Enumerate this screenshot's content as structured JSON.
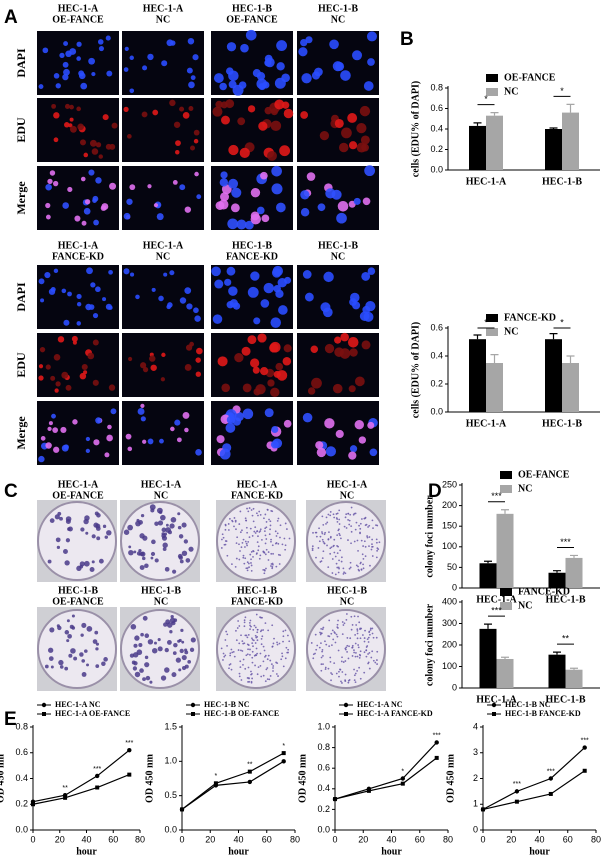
{
  "panel_labels": [
    "A",
    "B",
    "C",
    "D",
    "E"
  ],
  "edu_top": {
    "columns": [
      [
        "HEC-1-A",
        "OE-FANCE"
      ],
      [
        "HEC-1-A",
        "NC"
      ],
      [
        "HEC-1-B",
        "OE-FANCE"
      ],
      [
        "HEC-1-B",
        "NC"
      ]
    ],
    "rows": [
      "DAPI",
      "EDU",
      "Merge"
    ]
  },
  "edu_bottom": {
    "columns": [
      [
        "HEC-1-A",
        "FANCE-KD"
      ],
      [
        "HEC-1-A",
        "NC"
      ],
      [
        "HEC-1-B",
        "FANCE-KD"
      ],
      [
        "HEC-1-B",
        "NC"
      ]
    ],
    "rows": [
      "DAPI",
      "EDU",
      "Merge"
    ]
  },
  "colony": {
    "top": [
      [
        "HEC-1-A",
        "OE-FANCE"
      ],
      [
        "HEC-1-A",
        "NC"
      ],
      [
        "HEC-1-A",
        "FANCE-KD"
      ],
      [
        "HEC-1-A",
        "NC"
      ]
    ],
    "bottom": [
      [
        "HEC-1-B",
        "OE-FANCE"
      ],
      [
        "HEC-1-B",
        "NC"
      ],
      [
        "HEC-1-B",
        "FANCE-KD"
      ],
      [
        "HEC-1-B",
        "NC"
      ]
    ]
  },
  "chart_data": [
    {
      "type": "bar",
      "y_label": "cells (EDU% of DAPI)",
      "categories": [
        "HEC-1-A",
        "HEC-1-B"
      ],
      "series": [
        {
          "name": "OE-FANCE",
          "color": "#000000",
          "values": [
            0.43,
            0.4
          ],
          "errors": [
            0.03,
            0.01
          ]
        },
        {
          "name": "NC",
          "color": "#a6a6a6",
          "values": [
            0.53,
            0.56
          ],
          "errors": [
            0.03,
            0.08
          ]
        }
      ],
      "ylim": [
        0,
        0.8
      ],
      "yticks": [
        {
          "value": 0,
          "label": "0.0"
        },
        0.2,
        0.4,
        0.6,
        0.8
      ],
      "significance": [
        "*",
        "*"
      ]
    },
    {
      "type": "bar",
      "y_label": "cells (EDU% of DAPI)",
      "categories": [
        "HEC-1-A",
        "HEC-1-B"
      ],
      "series": [
        {
          "name": "FANCE-KD",
          "color": "#000000",
          "values": [
            0.52,
            0.52
          ],
          "errors": [
            0.03,
            0.04
          ]
        },
        {
          "name": "NC",
          "color": "#a6a6a6",
          "values": [
            0.35,
            0.35
          ],
          "errors": [
            0.06,
            0.05
          ]
        }
      ],
      "ylim": [
        0,
        0.6
      ],
      "yticks": [
        {
          "value": 0,
          "label": "0.0"
        },
        0.2,
        0.4,
        0.6
      ],
      "significance": [
        "*",
        "*"
      ]
    },
    {
      "type": "bar",
      "y_label": "colony foci number",
      "categories": [
        "HEC-1-A",
        "HEC-1-B"
      ],
      "series": [
        {
          "name": "OE-FANCE",
          "color": "#000000",
          "values": [
            60,
            37
          ],
          "errors": [
            5,
            5
          ]
        },
        {
          "name": "NC",
          "color": "#a6a6a6",
          "values": [
            180,
            73
          ],
          "errors": [
            10,
            6
          ]
        }
      ],
      "ylim": [
        0,
        250
      ],
      "yticks": [
        0,
        50,
        100,
        150,
        200,
        250
      ],
      "significance": [
        "***",
        "***"
      ]
    },
    {
      "type": "bar",
      "y_label": "colony foci number",
      "categories": [
        "HEC-1-A",
        "HEC-1-B"
      ],
      "series": [
        {
          "name": "FANCE-KD",
          "color": "#000000",
          "values": [
            275,
            155
          ],
          "errors": [
            22,
            12
          ]
        },
        {
          "name": "NC",
          "color": "#a6a6a6",
          "values": [
            135,
            85
          ],
          "errors": [
            8,
            7
          ]
        }
      ],
      "ylim": [
        0,
        400
      ],
      "yticks": [
        0,
        100,
        200,
        300,
        400
      ],
      "significance": [
        "***",
        "**"
      ]
    },
    {
      "type": "line",
      "x_label": "hour",
      "y_label": "OD 450 nm",
      "x": [
        0,
        24,
        48,
        72
      ],
      "series": [
        {
          "name": "HEC-1-A NC",
          "color": "#000000",
          "values": [
            0.22,
            0.27,
            0.42,
            0.62
          ]
        },
        {
          "name": "HEC-1-A OE-FANCE",
          "color": "#000000",
          "values": [
            0.2,
            0.25,
            0.33,
            0.43
          ]
        }
      ],
      "xlim": [
        0,
        80
      ],
      "xticks": [
        0,
        20,
        40,
        60,
        80
      ],
      "ylim": [
        0,
        0.8
      ],
      "yticks": [
        {
          "value": 0,
          "label": "0.0"
        },
        0.2,
        0.4,
        0.6,
        0.8
      ],
      "significance": [
        null,
        "**",
        "***",
        "***"
      ]
    },
    {
      "type": "line",
      "x_label": "hour",
      "y_label": "OD 450 nm",
      "x": [
        0,
        24,
        48,
        72
      ],
      "series": [
        {
          "name": "HEC-1-B NC",
          "color": "#000000",
          "values": [
            0.3,
            0.65,
            0.7,
            1.0
          ]
        },
        {
          "name": "HEC-1-B OE-FANCE",
          "color": "#000000",
          "values": [
            0.3,
            0.68,
            0.85,
            1.12
          ]
        }
      ],
      "xlim": [
        0,
        80
      ],
      "xticks": [
        0,
        20,
        40,
        60,
        80
      ],
      "ylim": [
        0,
        1.5
      ],
      "yticks": [
        {
          "value": 0,
          "label": "0.0"
        },
        0.5,
        {
          "value": 1,
          "label": "1.0"
        },
        1.5
      ],
      "significance": [
        null,
        "*",
        "**",
        "*"
      ]
    },
    {
      "type": "line",
      "x_label": "hour",
      "y_label": "OD 450 nm",
      "x": [
        0,
        24,
        48,
        72
      ],
      "series": [
        {
          "name": "HEC-1-A NC",
          "color": "#000000",
          "values": [
            0.3,
            0.4,
            0.5,
            0.85
          ]
        },
        {
          "name": "HEC-1-A FANCE-KD",
          "color": "#000000",
          "values": [
            0.3,
            0.38,
            0.45,
            0.7
          ]
        }
      ],
      "xlim": [
        0,
        80
      ],
      "xticks": [
        0,
        20,
        40,
        60,
        80
      ],
      "ylim": [
        0,
        1
      ],
      "yticks": [
        {
          "value": 0,
          "label": "0.0"
        },
        0.2,
        0.4,
        0.6,
        0.8,
        {
          "value": 1,
          "label": "1.0"
        }
      ],
      "significance": [
        null,
        null,
        "*",
        "***"
      ]
    },
    {
      "type": "line",
      "x_label": "hour",
      "y_label": "OD 450 nm",
      "x": [
        0,
        24,
        48,
        72
      ],
      "series": [
        {
          "name": "HEC-1-B NC",
          "color": "#000000",
          "values": [
            0.8,
            1.5,
            2.0,
            3.2
          ]
        },
        {
          "name": "HEC-1-B FANCE-KD",
          "color": "#000000",
          "values": [
            0.8,
            1.1,
            1.4,
            2.3
          ]
        }
      ],
      "xlim": [
        0,
        80
      ],
      "xticks": [
        0,
        20,
        40,
        60,
        80
      ],
      "ylim": [
        0,
        4
      ],
      "yticks": [
        0,
        1,
        2,
        3,
        4
      ],
      "significance": [
        null,
        "***",
        "***",
        "***"
      ]
    }
  ]
}
